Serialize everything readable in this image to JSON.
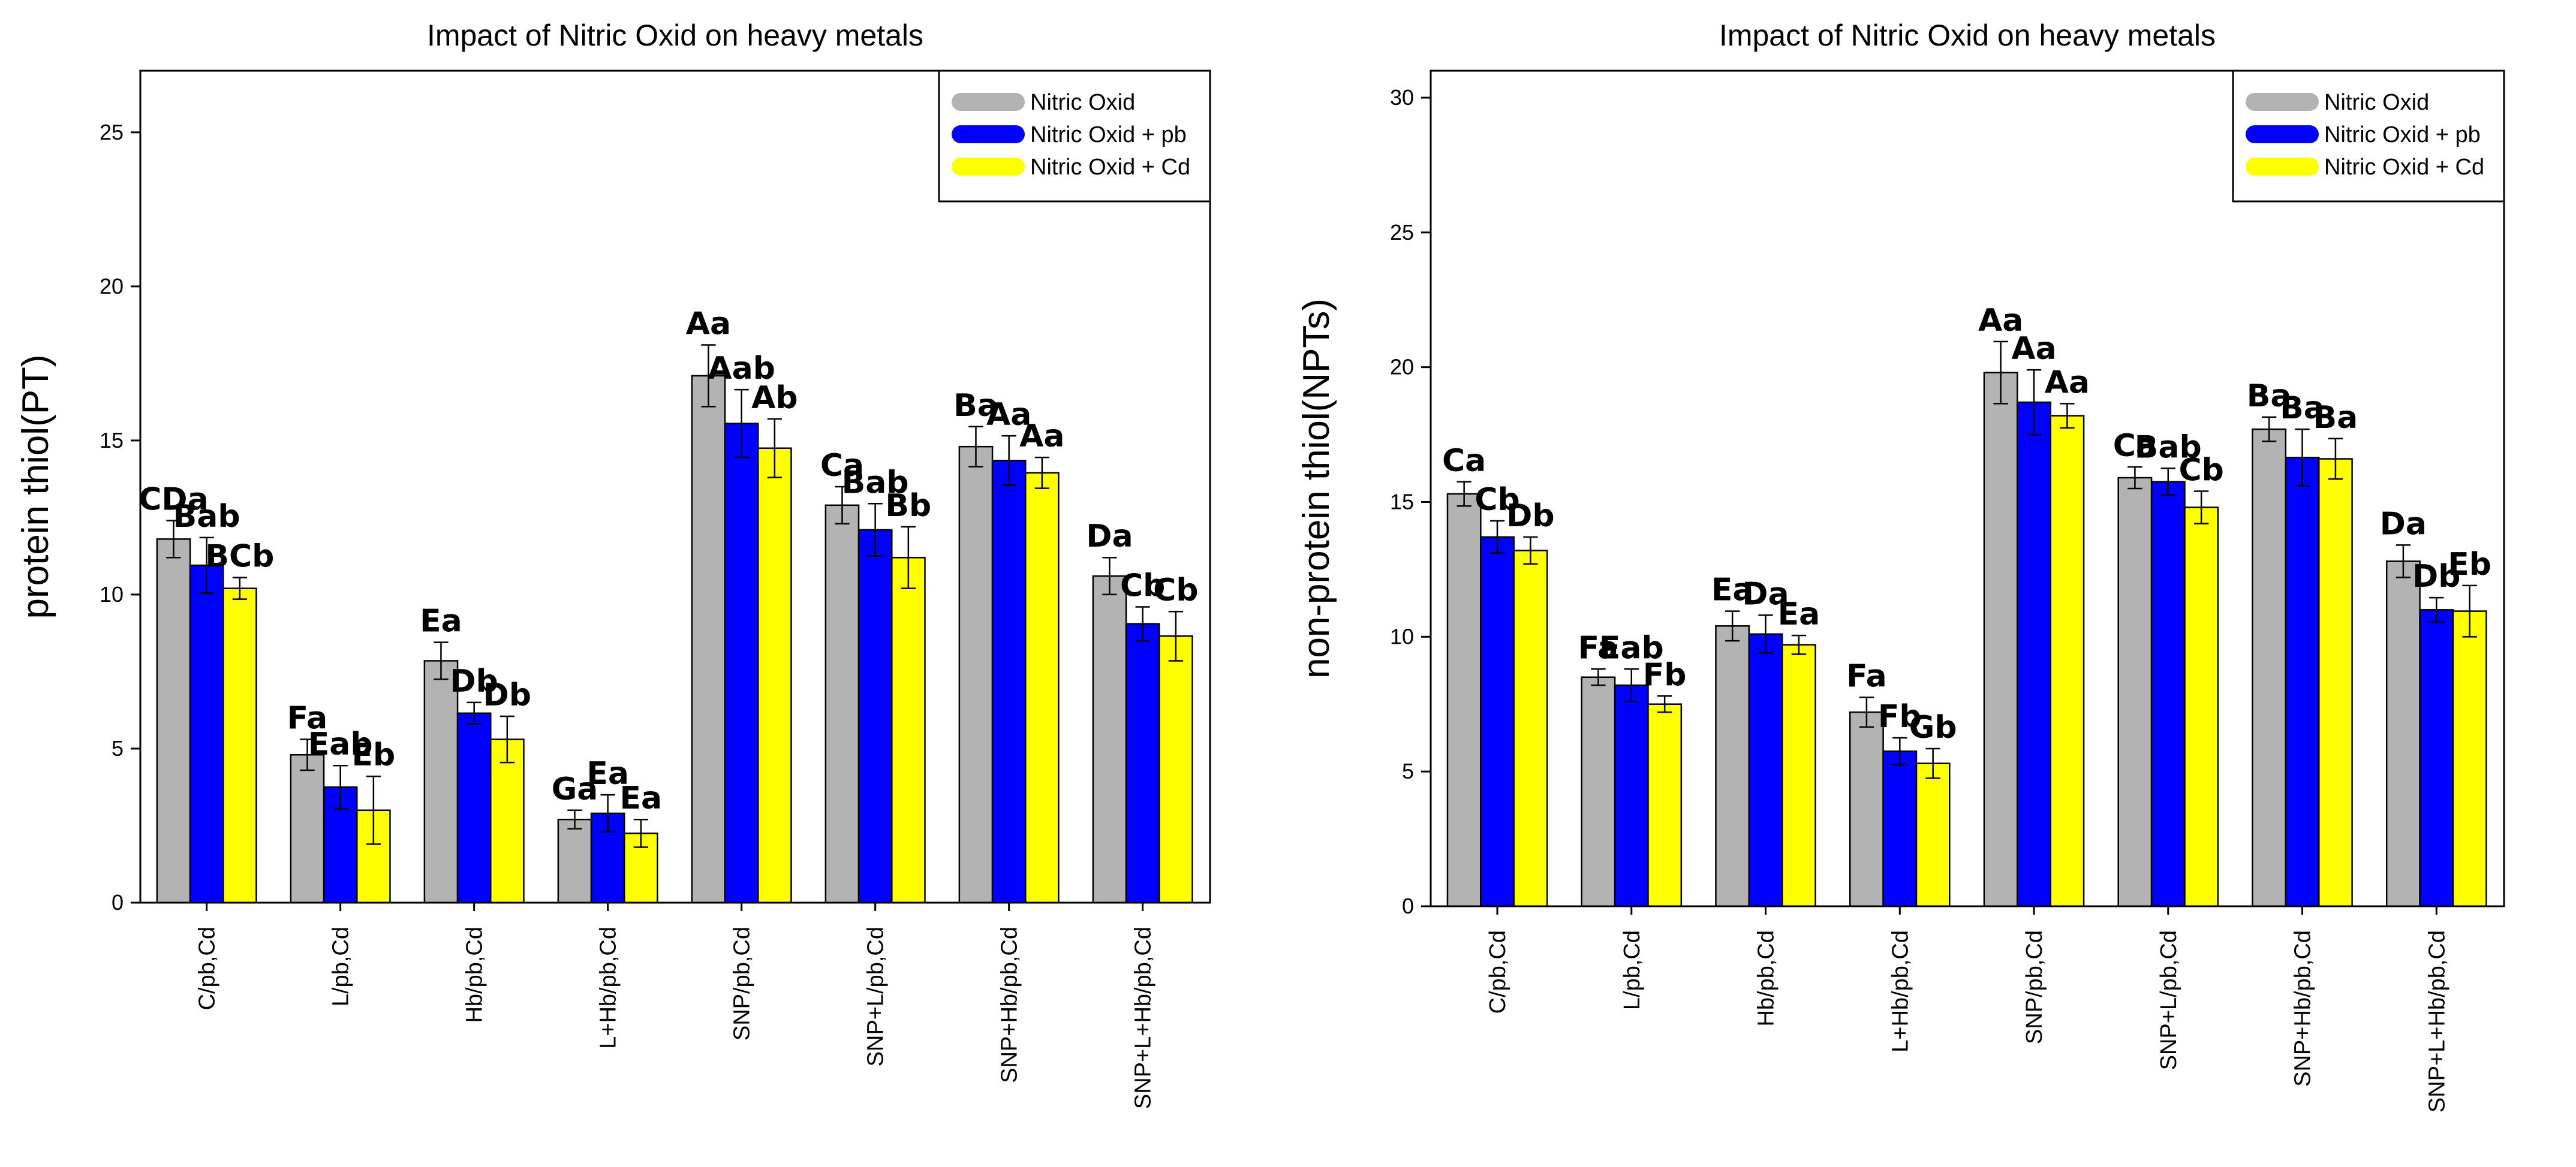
{
  "colors": {
    "nitric_oxid": "#b3b3b3",
    "nitric_oxid_pb": "#0000ff",
    "nitric_oxid_cd": "#ffff00",
    "axis": "#000000"
  },
  "chart_data": [
    {
      "type": "bar",
      "title": "Impact of Nitric Oxid on heavy metals",
      "xlabel": "",
      "ylabel": "protein thiol(PT)",
      "ylim": [
        0,
        27
      ],
      "yticks": [
        0,
        5,
        10,
        15,
        20,
        25
      ],
      "legend_position": "top-right",
      "categories": [
        "C/pb,Cd",
        "L/pb,Cd",
        "Hb/pb,Cd",
        "L+Hb/pb,Cd",
        "SNP/pb,Cd",
        "SNP+L/pb,Cd",
        "SNP+Hb/pb,Cd",
        "SNP+L+Hb/pb,Cd"
      ],
      "series": [
        {
          "name": "Nitric Oxid",
          "color": "#b3b3b3",
          "values": [
            11.8,
            4.8,
            7.85,
            2.7,
            17.1,
            12.9,
            14.8,
            10.6
          ],
          "errors": [
            0.6,
            0.5,
            0.6,
            0.3,
            1.0,
            0.6,
            0.65,
            0.6
          ],
          "labels": [
            "CDa",
            "Fa",
            "Ea",
            "Ga",
            "Aa",
            "Ca",
            "Ba",
            "Da"
          ]
        },
        {
          "name": "Nitric Oxid  + pb",
          "color": "#0000ff",
          "values": [
            10.95,
            3.75,
            6.15,
            2.9,
            15.55,
            12.1,
            14.35,
            9.05
          ],
          "errors": [
            0.9,
            0.7,
            0.35,
            0.6,
            1.1,
            0.85,
            0.8,
            0.55
          ],
          "labels": [
            "Bab",
            "Eab",
            "Db",
            "Ea",
            "Aab",
            "Bab",
            "Aa",
            "Cb"
          ]
        },
        {
          "name": "Nitric Oxid  + Cd",
          "color": "#ffff00",
          "values": [
            10.2,
            3.0,
            5.3,
            2.25,
            14.75,
            11.2,
            13.95,
            8.65
          ],
          "errors": [
            0.35,
            1.1,
            0.75,
            0.45,
            0.95,
            1.0,
            0.5,
            0.8
          ],
          "labels": [
            "BCb",
            "Eb",
            "Db",
            "Ea",
            "Ab",
            "Bb",
            "Aa",
            "Cb"
          ]
        }
      ]
    },
    {
      "type": "bar",
      "title": "Impact of Nitric Oxid on heavy metals",
      "xlabel": "",
      "ylabel": "non-protein thiol(NPTs)",
      "ylim": [
        0,
        31
      ],
      "yticks": [
        0,
        5,
        10,
        15,
        20,
        25,
        30
      ],
      "legend_position": "top-right",
      "categories": [
        "C/pb,Cd",
        "L/pb,Cd",
        "Hb/pb,Cd",
        "L+Hb/pb,Cd",
        "SNP/pb,Cd",
        "SNP+L/pb,Cd",
        "SNP+Hb/pb,Cd",
        "SNP+L+Hb/pb,Cd"
      ],
      "series": [
        {
          "name": "Nitric Oxid",
          "color": "#b3b3b3",
          "values": [
            15.3,
            8.5,
            10.4,
            7.2,
            19.8,
            15.9,
            17.7,
            12.8
          ],
          "errors": [
            0.45,
            0.3,
            0.55,
            0.55,
            1.15,
            0.4,
            0.45,
            0.6
          ],
          "labels": [
            "Ca",
            "Fa",
            "Ea",
            "Fa",
            "Aa",
            "Ca",
            "Ba",
            "Da"
          ]
        },
        {
          "name": "Nitric Oxid  + pb",
          "color": "#0000ff",
          "values": [
            13.7,
            8.2,
            10.1,
            5.75,
            18.7,
            15.75,
            16.65,
            11.0
          ],
          "errors": [
            0.6,
            0.6,
            0.7,
            0.5,
            1.2,
            0.5,
            1.05,
            0.45
          ],
          "labels": [
            "Cb",
            "Eab",
            "Da",
            "Fb",
            "Aa",
            "Bab",
            "Ba",
            "Db"
          ]
        },
        {
          "name": "Nitric Oxid  + Cd",
          "color": "#ffff00",
          "values": [
            13.2,
            7.5,
            9.7,
            5.3,
            18.2,
            14.8,
            16.6,
            10.95
          ],
          "errors": [
            0.5,
            0.3,
            0.35,
            0.55,
            0.45,
            0.6,
            0.75,
            0.95
          ],
          "labels": [
            "Db",
            "Fb",
            "Ea",
            "Gb",
            "Aa",
            "Cb",
            "Ba",
            "Eb"
          ]
        }
      ]
    }
  ]
}
